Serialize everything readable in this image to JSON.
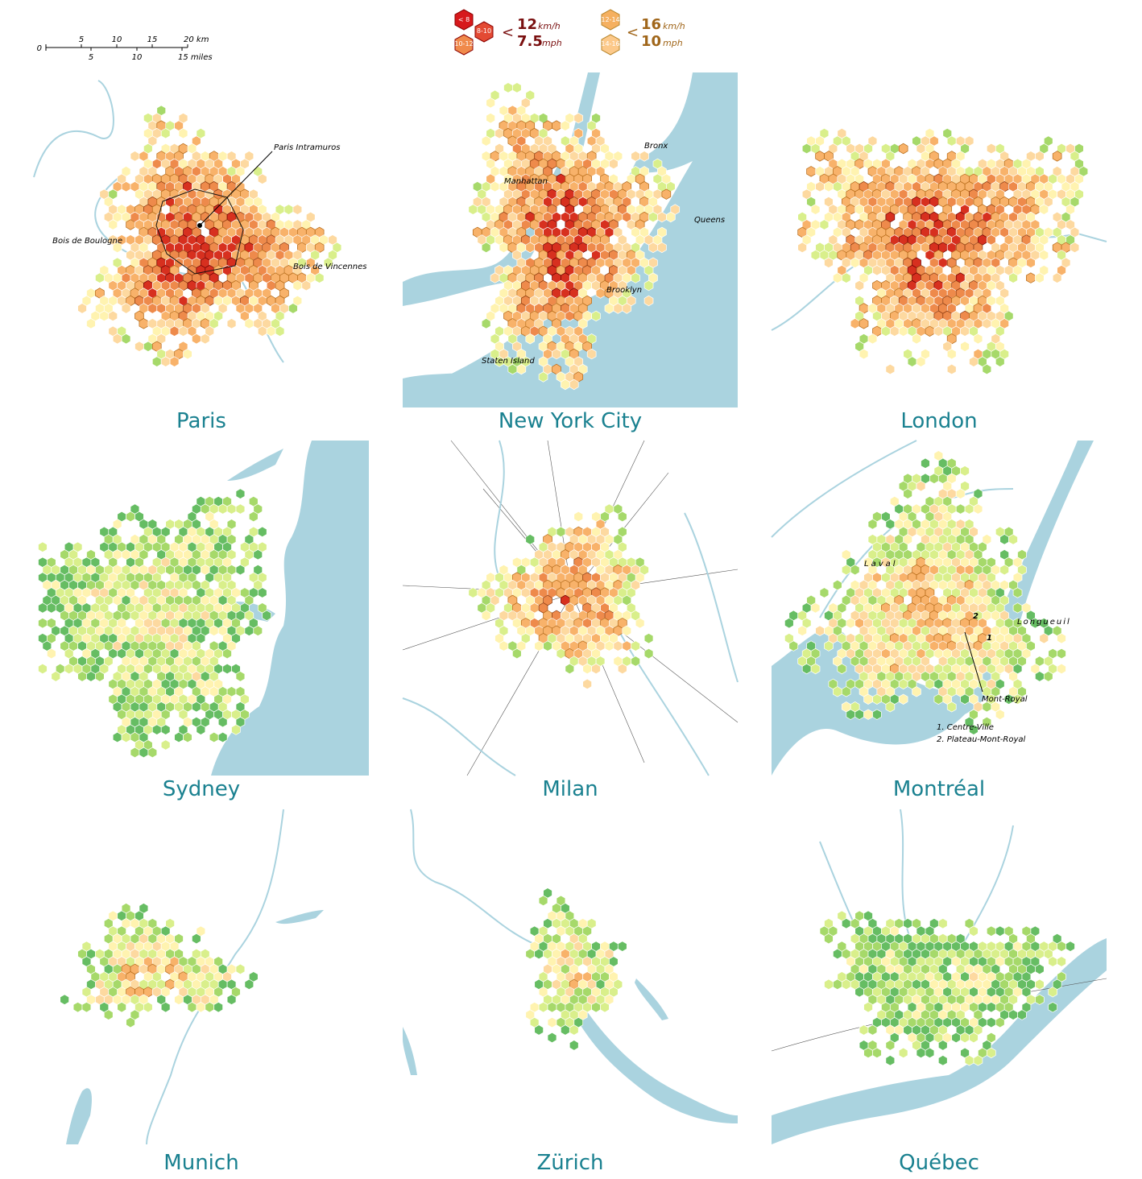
{
  "scale_bar": {
    "km": [
      "0",
      "5",
      "10",
      "15",
      "20 km"
    ],
    "miles": [
      "5",
      "10",
      "15 miles"
    ]
  },
  "legend": {
    "hex_labels": [
      "< 8",
      "8-10",
      "10-12",
      "12-14",
      "14-16"
    ],
    "hex_unit": "km/h",
    "groups": [
      {
        "sign": "<",
        "kmh": "12",
        "kmh_unit": "km/h",
        "mph": "7.5",
        "mph_unit": "mph"
      },
      {
        "sign": "<",
        "kmh": "16",
        "kmh_unit": "km/h",
        "mph": "10",
        "mph_unit": "mph"
      }
    ]
  },
  "panels": [
    {
      "title": "Paris",
      "annotations": [
        "Paris Intramuros",
        "Bois de Boulogne",
        "Bois de Vincennes"
      ]
    },
    {
      "title": "New York City",
      "annotations": [
        "Bronx",
        "Manhattan",
        "Queens",
        "Brooklyn",
        "Staten Island"
      ]
    },
    {
      "title": "London"
    },
    {
      "title": "Sydney"
    },
    {
      "title": "Milan"
    },
    {
      "title": "Montréal",
      "annotations": [
        "Laval",
        "Longueuil",
        "Mont-Royal",
        "1. Centre-Ville",
        "2. Plateau-Mont-Royal",
        "1",
        "2"
      ]
    },
    {
      "title": "Munich"
    },
    {
      "title": "Zürich"
    },
    {
      "title": "Québec"
    }
  ]
}
